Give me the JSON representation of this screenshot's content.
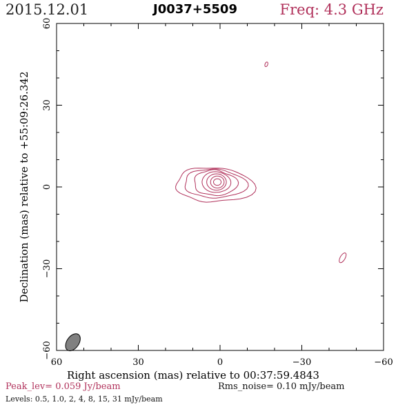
{
  "header": {
    "date": "2015.12.01",
    "source": "J0037+5509",
    "frequency": "Freq: 4.3 GHz"
  },
  "footer": {
    "peak_level": "Peak_lev=  0.059 Jy/beam",
    "rms_noise": "Rms_noise= 0.10 mJy/beam",
    "levels": "Levels: 0.5, 1.0,   2,   4,   8,  15,  31 mJy/beam"
  },
  "colors": {
    "contour": "#b0305a",
    "beam_fill": "#808080",
    "axes": "#000000"
  },
  "chart_data": {
    "type": "contour",
    "xlabel": "Right ascension (mas) relative to 00:37:59.4843",
    "ylabel": "Declination (mas) relative to +55:09:26.342",
    "xlim": [
      60,
      -60
    ],
    "ylim": [
      -60,
      60
    ],
    "x_ticks": [
      60,
      30,
      0,
      -30,
      -60
    ],
    "y_ticks": [
      -60,
      -30,
      0,
      30,
      60
    ],
    "x_tick_labels": [
      "60",
      "30",
      "0",
      "−30",
      "−60"
    ],
    "y_tick_labels": [
      "−60",
      "−30",
      "0",
      "30",
      "60"
    ],
    "contour_levels_mJy_per_beam": [
      0.5,
      1.0,
      2,
      4,
      8,
      15,
      31
    ],
    "peak_Jy_per_beam": 0.059,
    "rms_noise_mJy_per_beam": 0.1,
    "core": {
      "x": 1,
      "y": 1
    },
    "features": [
      {
        "name": "core",
        "x": 1,
        "y": 1
      },
      {
        "name": "jet-extension",
        "x": -9,
        "y": -1
      },
      {
        "name": "knot-east-north",
        "x": -17,
        "y": 45
      },
      {
        "name": "knot-south-west",
        "x": -45,
        "y": -26
      }
    ],
    "beam": {
      "x": 54,
      "y": -57,
      "major_mas": 3.5,
      "minor_mas": 2.2,
      "pa_deg": 35
    },
    "grid": false
  }
}
